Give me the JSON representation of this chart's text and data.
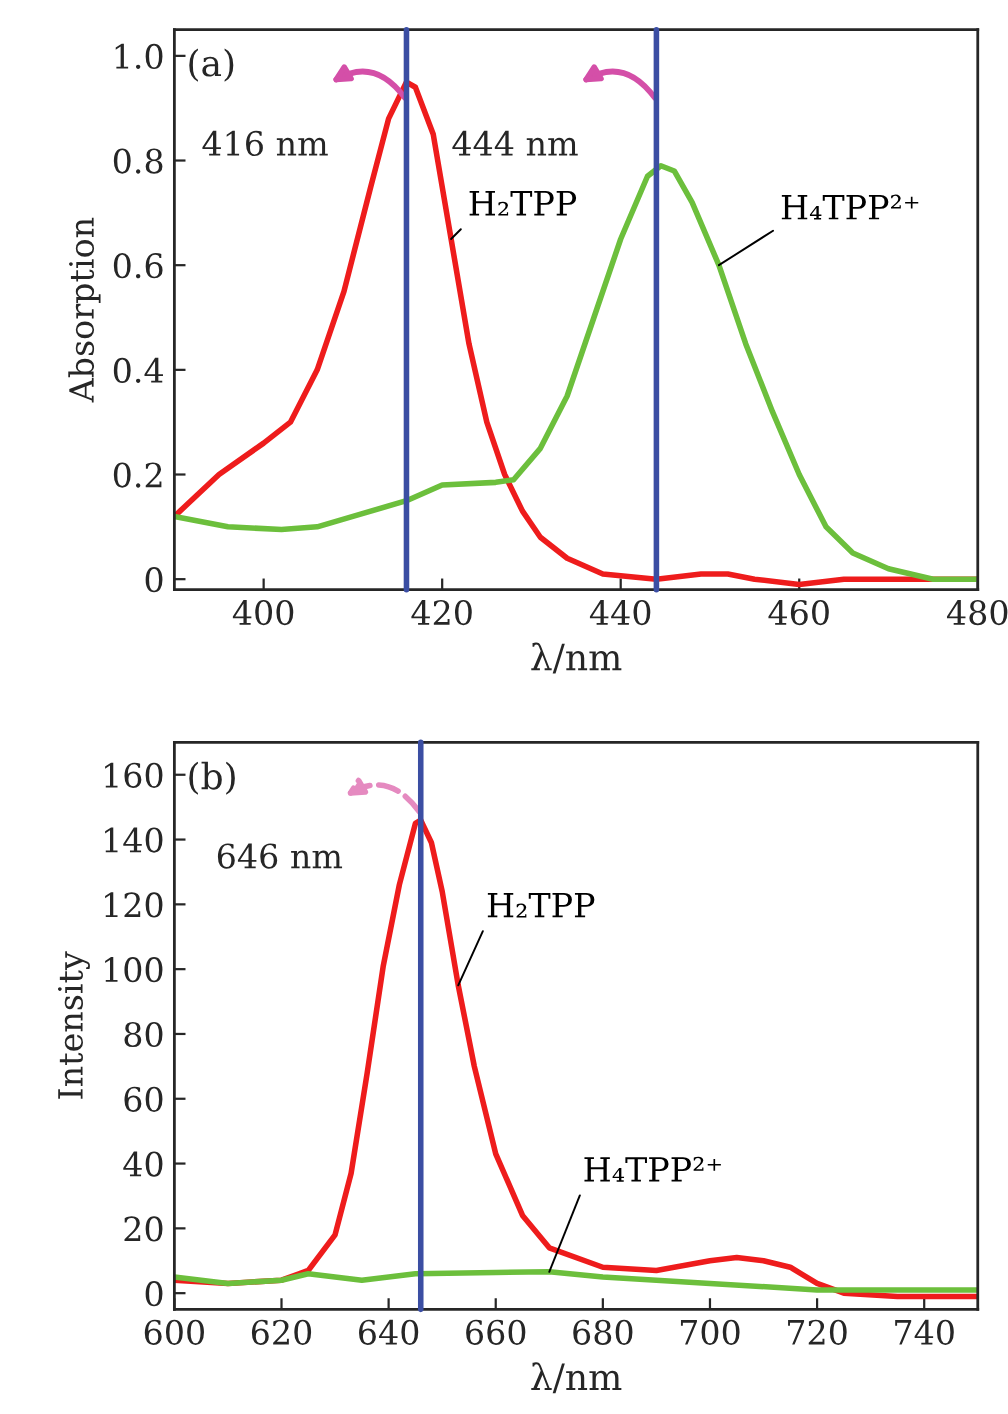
{
  "chart_data": [
    {
      "type": "line",
      "xlabel": "λ/nm",
      "ylabel": "Absorption",
      "annotations": [
        "(a)"
      ],
      "xlim": [
        390,
        480
      ],
      "ylim": [
        -0.02,
        1.05
      ],
      "xticks": [
        400,
        420,
        440,
        460,
        480
      ],
      "yticks": [
        0,
        0.2,
        0.4,
        0.6,
        0.8,
        {
          "value": 1,
          "label": "1.0"
        }
      ],
      "grid": false,
      "legend": false,
      "ref_lines": [
        {
          "axis": "x",
          "value": 416,
          "label": "416 nm",
          "color": "#3b4ea3"
        },
        {
          "axis": "x",
          "value": 444,
          "label": "444 nm",
          "color": "#3b4ea3"
        }
      ],
      "series": [
        {
          "name": "H₂TPP",
          "color": "#ee1c1c",
          "x": [
            390,
            395,
            400,
            403,
            406,
            409,
            412,
            414,
            416,
            417,
            419,
            421,
            423,
            425,
            427,
            429,
            431,
            434,
            438,
            444,
            449,
            452,
            455,
            460,
            465,
            470,
            480
          ],
          "values": [
            0.12,
            0.2,
            0.26,
            0.3,
            0.4,
            0.55,
            0.75,
            0.88,
            0.95,
            0.94,
            0.85,
            0.65,
            0.45,
            0.3,
            0.2,
            0.13,
            0.08,
            0.04,
            0.01,
            0.0,
            0.01,
            0.01,
            0.0,
            -0.01,
            0.0,
            0.0,
            0.0
          ]
        },
        {
          "name": "H₄TPP²⁺",
          "color": "#6cbf3c",
          "x": [
            390,
            396,
            402,
            406,
            410,
            416,
            420,
            426,
            428,
            431,
            434,
            437,
            440,
            443,
            444.5,
            446,
            448,
            451,
            454,
            457,
            460,
            463,
            466,
            470,
            475,
            480
          ],
          "values": [
            0.12,
            0.1,
            0.095,
            0.1,
            0.12,
            0.15,
            0.18,
            0.185,
            0.19,
            0.25,
            0.35,
            0.5,
            0.65,
            0.77,
            0.79,
            0.78,
            0.72,
            0.6,
            0.45,
            0.32,
            0.2,
            0.1,
            0.05,
            0.02,
            0.0,
            0.0
          ]
        }
      ]
    },
    {
      "type": "line",
      "xlabel": "λ/nm",
      "ylabel": "Intensity",
      "annotations": [
        "(b)"
      ],
      "xlim": [
        600,
        750
      ],
      "ylim": [
        -5,
        170
      ],
      "xticks": [
        600,
        620,
        640,
        660,
        680,
        700,
        720,
        740
      ],
      "yticks": [
        0,
        20,
        40,
        60,
        80,
        100,
        120,
        140,
        160
      ],
      "grid": false,
      "legend": false,
      "ref_lines": [
        {
          "axis": "x",
          "value": 646,
          "label": "646 nm",
          "color": "#3b4ea3"
        }
      ],
      "series": [
        {
          "name": "H₂TPP",
          "color": "#ee1c1c",
          "x": [
            600,
            610,
            620,
            625,
            630,
            633,
            636,
            639,
            642,
            645,
            646,
            648,
            650,
            653,
            656,
            660,
            665,
            670,
            680,
            690,
            700,
            705,
            710,
            715,
            720,
            725,
            735,
            750
          ],
          "values": [
            4,
            3,
            4,
            7,
            18,
            37,
            68,
            101,
            126,
            145,
            146,
            139,
            124,
            95,
            70,
            43,
            24,
            14,
            8,
            7,
            10,
            11,
            10,
            8,
            3,
            0,
            -1,
            -1
          ]
        },
        {
          "name": "H₄TPP²⁺",
          "color": "#6cbf3c",
          "x": [
            600,
            610,
            620,
            625,
            635,
            645,
            660,
            670,
            680,
            700,
            720,
            740,
            750
          ],
          "values": [
            5,
            3,
            4,
            6,
            4,
            6,
            6.4,
            6.6,
            5,
            3,
            1,
            1,
            1
          ]
        }
      ]
    }
  ]
}
